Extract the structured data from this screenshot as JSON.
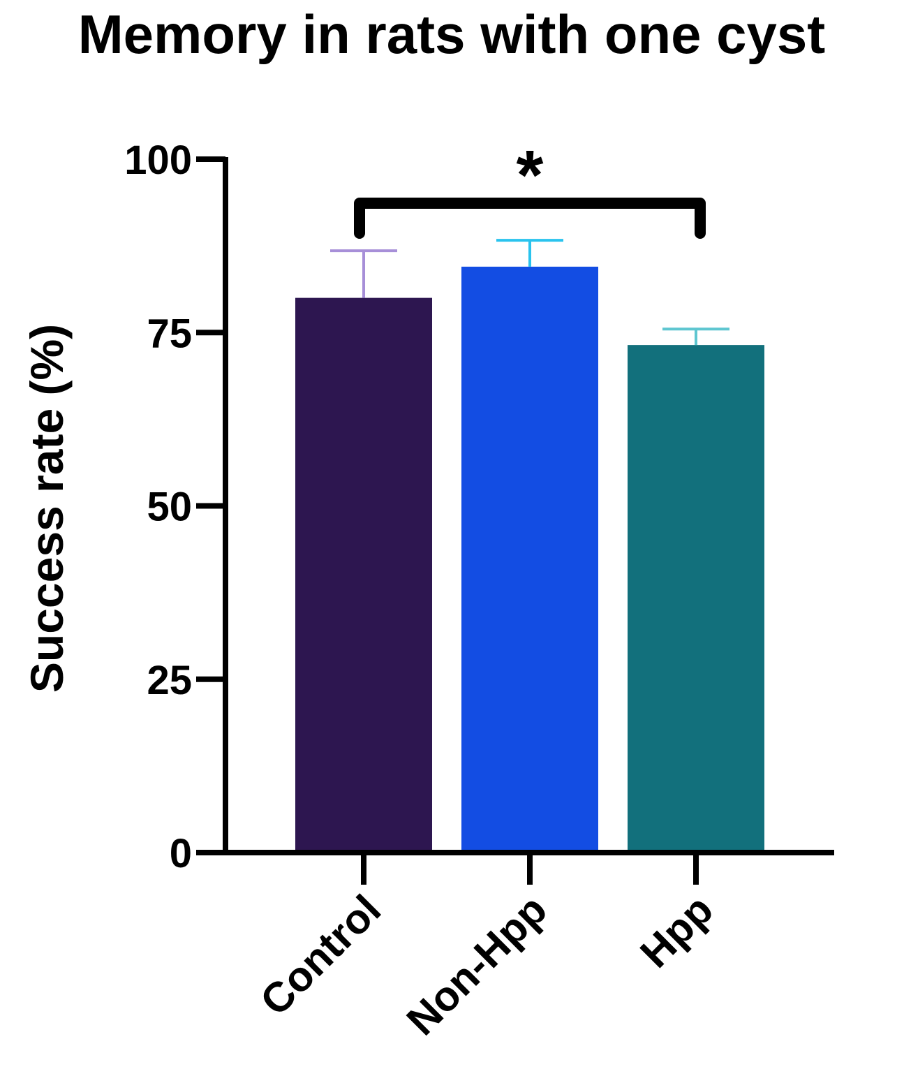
{
  "chart_data": {
    "type": "bar",
    "title": "Memory in rats with one cyst",
    "xlabel": "",
    "ylabel": "Success rate (%)",
    "ylim": [
      0,
      100
    ],
    "yticks": [
      "0",
      "25",
      "50",
      "75",
      "100"
    ],
    "categories": [
      "Control",
      "Non-Hpp",
      "Hpp"
    ],
    "values": [
      80,
      84.5,
      73.2
    ],
    "error_upper": [
      86.8,
      88.3,
      75.5
    ],
    "bar_colors": [
      "#2d1650",
      "#134de3",
      "#12707c"
    ],
    "error_colors": [
      "#a78fd8",
      "#29c3ee",
      "#5ec6d0"
    ],
    "axis_color": "#000000",
    "grid": false,
    "significance": {
      "from": "Control",
      "to": "Hpp",
      "label": "*"
    }
  }
}
